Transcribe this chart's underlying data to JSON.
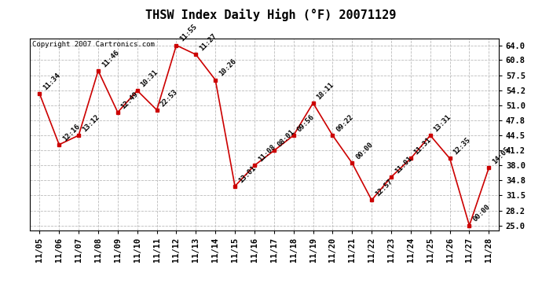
{
  "title": "THSW Index Daily High (°F) 20071129",
  "copyright": "Copyright 2007 Cartronics.com",
  "dates": [
    "11/05",
    "11/06",
    "11/07",
    "11/08",
    "11/09",
    "11/10",
    "11/11",
    "11/12",
    "11/13",
    "11/14",
    "11/15",
    "11/16",
    "11/17",
    "11/18",
    "11/19",
    "11/20",
    "11/21",
    "11/22",
    "11/23",
    "11/24",
    "11/25",
    "11/26",
    "11/27",
    "11/28"
  ],
  "values": [
    53.5,
    42.5,
    44.5,
    58.5,
    49.5,
    54.2,
    50.0,
    64.0,
    62.0,
    56.5,
    33.5,
    38.0,
    41.2,
    44.5,
    51.5,
    44.5,
    38.5,
    30.5,
    35.5,
    39.5,
    44.5,
    39.5,
    25.0,
    37.5
  ],
  "labels": [
    "11:34",
    "12:16",
    "13:12",
    "11:46",
    "12:49",
    "10:31",
    "22:53",
    "11:55",
    "11:27",
    "10:26",
    "13:01",
    "11:08",
    "08:01",
    "09:56",
    "18:11",
    "09:22",
    "00:00",
    "12:57",
    "11:01",
    "11:31",
    "13:31",
    "12:35",
    "00:00",
    "14:05"
  ],
  "yticks": [
    25.0,
    28.2,
    31.5,
    34.8,
    38.0,
    41.2,
    44.5,
    47.8,
    51.0,
    54.2,
    57.5,
    60.8,
    64.0
  ],
  "ylim": [
    24.0,
    65.5
  ],
  "line_color": "#cc0000",
  "marker_color": "#cc0000",
  "grid_color": "#bbbbbb",
  "bg_color": "#ffffff",
  "plot_bg_color": "#ffffff",
  "title_fontsize": 11,
  "label_fontsize": 6.5,
  "tick_fontsize": 7.5,
  "copyright_fontsize": 6.5
}
